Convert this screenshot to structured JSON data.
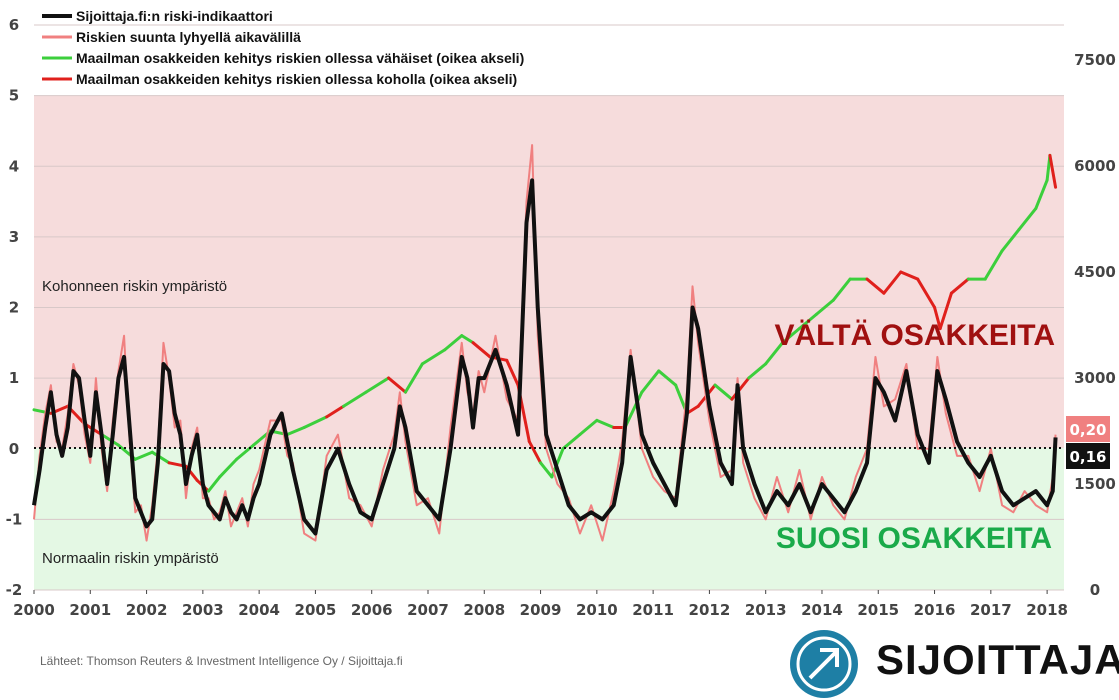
{
  "chart_data": {
    "type": "line",
    "legend": [
      {
        "label": "Sijoittaja.fi:n riski-indikaattori",
        "color": "#111111"
      },
      {
        "label": "Riskien suunta lyhyellä aikavälillä",
        "color": "#f08080"
      },
      {
        "label": "Maailman osakkeiden kehitys riskien ollessa vähäiset (oikea akseli)",
        "color": "#3ccf3c"
      },
      {
        "label": "Maailman osakkeiden kehitys riskien ollessa koholla (oikea akseli)",
        "color": "#e0201c"
      }
    ],
    "x_ticks": [
      "2000",
      "2001",
      "2002",
      "2003",
      "2004",
      "2005",
      "2006",
      "2007",
      "2008",
      "2009",
      "2010",
      "2011",
      "2012",
      "2013",
      "2014",
      "2015",
      "2016",
      "2017",
      "2018"
    ],
    "y_left_ticks": [
      "6",
      "5",
      "4",
      "3",
      "2",
      "1",
      "0",
      "-1",
      "-2"
    ],
    "y_right_ticks": [
      "7500",
      "6000",
      "4500",
      "3000",
      "1500",
      "0"
    ],
    "ylim_left": [
      -2,
      6
    ],
    "ylim_right": [
      0,
      7500
    ],
    "xlim": [
      2000,
      2018.3
    ],
    "zones": {
      "high_risk_label": "Kohonneen riskin ympäristö",
      "low_risk_label": "Normaalin riskin ympäristö",
      "avoid_label": "VÄLTÄ OSAKKEITA",
      "favor_label": "SUOSI OSAKKEITA"
    },
    "end_values": {
      "short_term": "0,20",
      "indicator": "0,16"
    },
    "colors": {
      "high_zone": "#f6dcdc",
      "low_zone": "#e4f8e4",
      "avoid": "#a01010",
      "favor": "#1aaa4a",
      "indicator": "#111111",
      "short_term": "#f08080",
      "stocks_low": "#3ccf3c",
      "stocks_high": "#e0201c"
    },
    "risk_indicator": {
      "x": [
        2000.0,
        2000.1,
        2000.2,
        2000.3,
        2000.4,
        2000.5,
        2000.6,
        2000.7,
        2000.8,
        2000.9,
        2001.0,
        2001.1,
        2001.2,
        2001.3,
        2001.4,
        2001.5,
        2001.6,
        2001.7,
        2001.8,
        2001.9,
        2002.0,
        2002.1,
        2002.2,
        2002.3,
        2002.4,
        2002.5,
        2002.6,
        2002.7,
        2002.8,
        2002.9,
        2003.0,
        2003.1,
        2003.2,
        2003.3,
        2003.4,
        2003.5,
        2003.6,
        2003.7,
        2003.8,
        2003.9,
        2004.0,
        2004.2,
        2004.4,
        2004.5,
        2004.6,
        2004.8,
        2005.0,
        2005.2,
        2005.4,
        2005.6,
        2005.8,
        2006.0,
        2006.2,
        2006.4,
        2006.5,
        2006.6,
        2006.8,
        2007.0,
        2007.2,
        2007.4,
        2007.6,
        2007.7,
        2007.8,
        2007.9,
        2008.0,
        2008.2,
        2008.4,
        2008.6,
        2008.75,
        2008.85,
        2008.95,
        2009.1,
        2009.3,
        2009.5,
        2009.7,
        2009.9,
        2010.1,
        2010.3,
        2010.45,
        2010.6,
        2010.8,
        2011.0,
        2011.2,
        2011.4,
        2011.6,
        2011.7,
        2011.8,
        2012.0,
        2012.2,
        2012.4,
        2012.5,
        2012.6,
        2012.8,
        2013.0,
        2013.2,
        2013.4,
        2013.6,
        2013.8,
        2014.0,
        2014.2,
        2014.4,
        2014.6,
        2014.8,
        2014.95,
        2015.1,
        2015.3,
        2015.5,
        2015.7,
        2015.9,
        2016.05,
        2016.2,
        2016.4,
        2016.6,
        2016.8,
        2017.0,
        2017.2,
        2017.4,
        2017.6,
        2017.8,
        2018.0,
        2018.1,
        2018.15
      ],
      "y": [
        -0.8,
        -0.3,
        0.3,
        0.8,
        0.2,
        -0.1,
        0.3,
        1.1,
        1.0,
        0.4,
        -0.1,
        0.8,
        0.2,
        -0.5,
        0.2,
        1.0,
        1.3,
        0.3,
        -0.7,
        -0.9,
        -1.1,
        -1.0,
        -0.2,
        1.2,
        1.1,
        0.5,
        0.2,
        -0.5,
        -0.1,
        0.2,
        -0.5,
        -0.8,
        -0.9,
        -1.0,
        -0.7,
        -0.9,
        -1.0,
        -0.8,
        -1.0,
        -0.7,
        -0.5,
        0.2,
        0.5,
        0.1,
        -0.3,
        -1.0,
        -1.2,
        -0.3,
        0.0,
        -0.5,
        -0.9,
        -1.0,
        -0.5,
        0.0,
        0.6,
        0.3,
        -0.6,
        -0.8,
        -1.0,
        0.0,
        1.3,
        1.0,
        0.3,
        1.0,
        1.0,
        1.4,
        0.9,
        0.2,
        3.2,
        3.8,
        2.0,
        0.2,
        -0.3,
        -0.8,
        -1.0,
        -0.9,
        -1.0,
        -0.8,
        -0.2,
        1.3,
        0.2,
        -0.2,
        -0.5,
        -0.8,
        0.5,
        2.0,
        1.7,
        0.6,
        -0.2,
        -0.5,
        0.9,
        0.0,
        -0.5,
        -0.9,
        -0.6,
        -0.8,
        -0.5,
        -0.9,
        -0.5,
        -0.7,
        -0.9,
        -0.6,
        -0.2,
        1.0,
        0.8,
        0.4,
        1.1,
        0.2,
        -0.2,
        1.1,
        0.7,
        0.1,
        -0.2,
        -0.4,
        -0.1,
        -0.6,
        -0.8,
        -0.7,
        -0.6,
        -0.8,
        -0.6,
        0.16
      ]
    },
    "short_term_direction": {
      "x": [
        2000.0,
        2000.1,
        2000.2,
        2000.3,
        2000.4,
        2000.5,
        2000.6,
        2000.7,
        2000.8,
        2000.9,
        2001.0,
        2001.1,
        2001.2,
        2001.3,
        2001.4,
        2001.5,
        2001.6,
        2001.7,
        2001.8,
        2001.9,
        2002.0,
        2002.1,
        2002.2,
        2002.3,
        2002.4,
        2002.5,
        2002.6,
        2002.7,
        2002.8,
        2002.9,
        2003.0,
        2003.1,
        2003.2,
        2003.3,
        2003.4,
        2003.5,
        2003.6,
        2003.7,
        2003.8,
        2003.9,
        2004.0,
        2004.2,
        2004.4,
        2004.5,
        2004.6,
        2004.8,
        2005.0,
        2005.2,
        2005.4,
        2005.6,
        2005.8,
        2006.0,
        2006.2,
        2006.4,
        2006.5,
        2006.6,
        2006.8,
        2007.0,
        2007.2,
        2007.4,
        2007.6,
        2007.7,
        2007.8,
        2007.9,
        2008.0,
        2008.2,
        2008.4,
        2008.6,
        2008.75,
        2008.85,
        2008.95,
        2009.1,
        2009.3,
        2009.5,
        2009.7,
        2009.9,
        2010.1,
        2010.3,
        2010.45,
        2010.6,
        2010.8,
        2011.0,
        2011.2,
        2011.4,
        2011.6,
        2011.7,
        2011.8,
        2012.0,
        2012.2,
        2012.4,
        2012.5,
        2012.6,
        2012.8,
        2013.0,
        2013.2,
        2013.4,
        2013.6,
        2013.8,
        2014.0,
        2014.2,
        2014.4,
        2014.6,
        2014.8,
        2014.95,
        2015.1,
        2015.3,
        2015.5,
        2015.7,
        2015.9,
        2016.05,
        2016.2,
        2016.4,
        2016.6,
        2016.8,
        2017.0,
        2017.2,
        2017.4,
        2017.6,
        2017.8,
        2018.0,
        2018.1,
        2018.15
      ],
      "y": [
        -1.0,
        -0.1,
        0.5,
        0.9,
        0.1,
        0.0,
        0.5,
        1.2,
        0.9,
        0.2,
        -0.2,
        1.0,
        0.0,
        -0.6,
        0.4,
        1.1,
        1.6,
        0.1,
        -0.9,
        -0.8,
        -1.3,
        -0.8,
        0.0,
        1.5,
        1.0,
        0.3,
        0.4,
        -0.7,
        0.0,
        0.3,
        -0.7,
        -0.7,
        -1.0,
        -0.9,
        -0.6,
        -1.1,
        -0.9,
        -0.7,
        -1.1,
        -0.5,
        -0.3,
        0.4,
        0.4,
        -0.1,
        -0.2,
        -1.2,
        -1.3,
        -0.1,
        0.2,
        -0.7,
        -0.8,
        -1.1,
        -0.3,
        0.2,
        0.8,
        0.1,
        -0.8,
        -0.7,
        -1.2,
        0.3,
        1.5,
        0.8,
        0.5,
        1.1,
        0.8,
        1.6,
        0.7,
        0.4,
        3.5,
        4.3,
        1.6,
        0.0,
        -0.5,
        -0.7,
        -1.2,
        -0.8,
        -1.3,
        -0.6,
        0.1,
        1.4,
        0.0,
        -0.4,
        -0.6,
        -0.7,
        0.8,
        2.3,
        1.5,
        0.4,
        -0.4,
        -0.3,
        1.0,
        -0.2,
        -0.7,
        -1.0,
        -0.4,
        -0.9,
        -0.3,
        -1.0,
        -0.4,
        -0.8,
        -1.0,
        -0.4,
        0.0,
        1.3,
        0.6,
        0.7,
        1.2,
        0.0,
        0.0,
        1.3,
        0.5,
        -0.1,
        -0.1,
        -0.6,
        0.0,
        -0.8,
        -0.9,
        -0.6,
        -0.8,
        -0.9,
        -0.4,
        0.2
      ]
    },
    "world_stocks": {
      "x": [
        2000.0,
        2000.3,
        2000.6,
        2000.9,
        2001.2,
        2001.5,
        2001.8,
        2002.1,
        2002.4,
        2002.7,
        2002.9,
        2003.1,
        2003.3,
        2003.6,
        2003.9,
        2004.2,
        2004.5,
        2004.8,
        2005.2,
        2005.5,
        2005.9,
        2006.3,
        2006.6,
        2006.9,
        2007.3,
        2007.6,
        2007.8,
        2008.1,
        2008.4,
        2008.6,
        2008.8,
        2009.0,
        2009.2,
        2009.4,
        2009.7,
        2010.0,
        2010.3,
        2010.5,
        2010.8,
        2011.1,
        2011.4,
        2011.6,
        2011.8,
        2012.1,
        2012.4,
        2012.7,
        2013.0,
        2013.3,
        2013.6,
        2013.9,
        2014.2,
        2014.5,
        2014.8,
        2015.1,
        2015.4,
        2015.7,
        2016.0,
        2016.1,
        2016.3,
        2016.6,
        2016.9,
        2017.2,
        2017.5,
        2017.8,
        2018.0,
        2018.05,
        2018.15
      ],
      "v": [
        2550,
        2500,
        2600,
        2350,
        2200,
        2050,
        1850,
        1950,
        1800,
        1750,
        1550,
        1400,
        1600,
        1850,
        2050,
        2250,
        2200,
        2300,
        2450,
        2600,
        2800,
        3000,
        2800,
        3200,
        3400,
        3600,
        3500,
        3300,
        3250,
        2900,
        2100,
        1800,
        1600,
        2000,
        2200,
        2400,
        2300,
        2300,
        2800,
        3100,
        2900,
        2500,
        2600,
        2900,
        2700,
        3000,
        3200,
        3500,
        3700,
        3900,
        4100,
        4400,
        4400,
        4200,
        4500,
        4400,
        4000,
        3700,
        4200,
        4400,
        4400,
        4800,
        5100,
        5400,
        5800,
        6150,
        5700
      ],
      "high_risk_segments": [
        [
          2000.2,
          2000.8
        ],
        [
          2001.0,
          2001.3
        ],
        [
          2002.5,
          2003.0
        ],
        [
          2004.4,
          2004.6
        ],
        [
          2005.3,
          2005.4
        ],
        [
          2006.4,
          2006.6
        ],
        [
          2007.7,
          2009.0
        ],
        [
          2010.4,
          2010.6
        ],
        [
          2011.6,
          2012.1
        ],
        [
          2012.4,
          2012.6
        ],
        [
          2013.6,
          2013.7
        ],
        [
          2014.8,
          2016.7
        ],
        [
          2018.1,
          2018.15
        ]
      ]
    }
  }
}
